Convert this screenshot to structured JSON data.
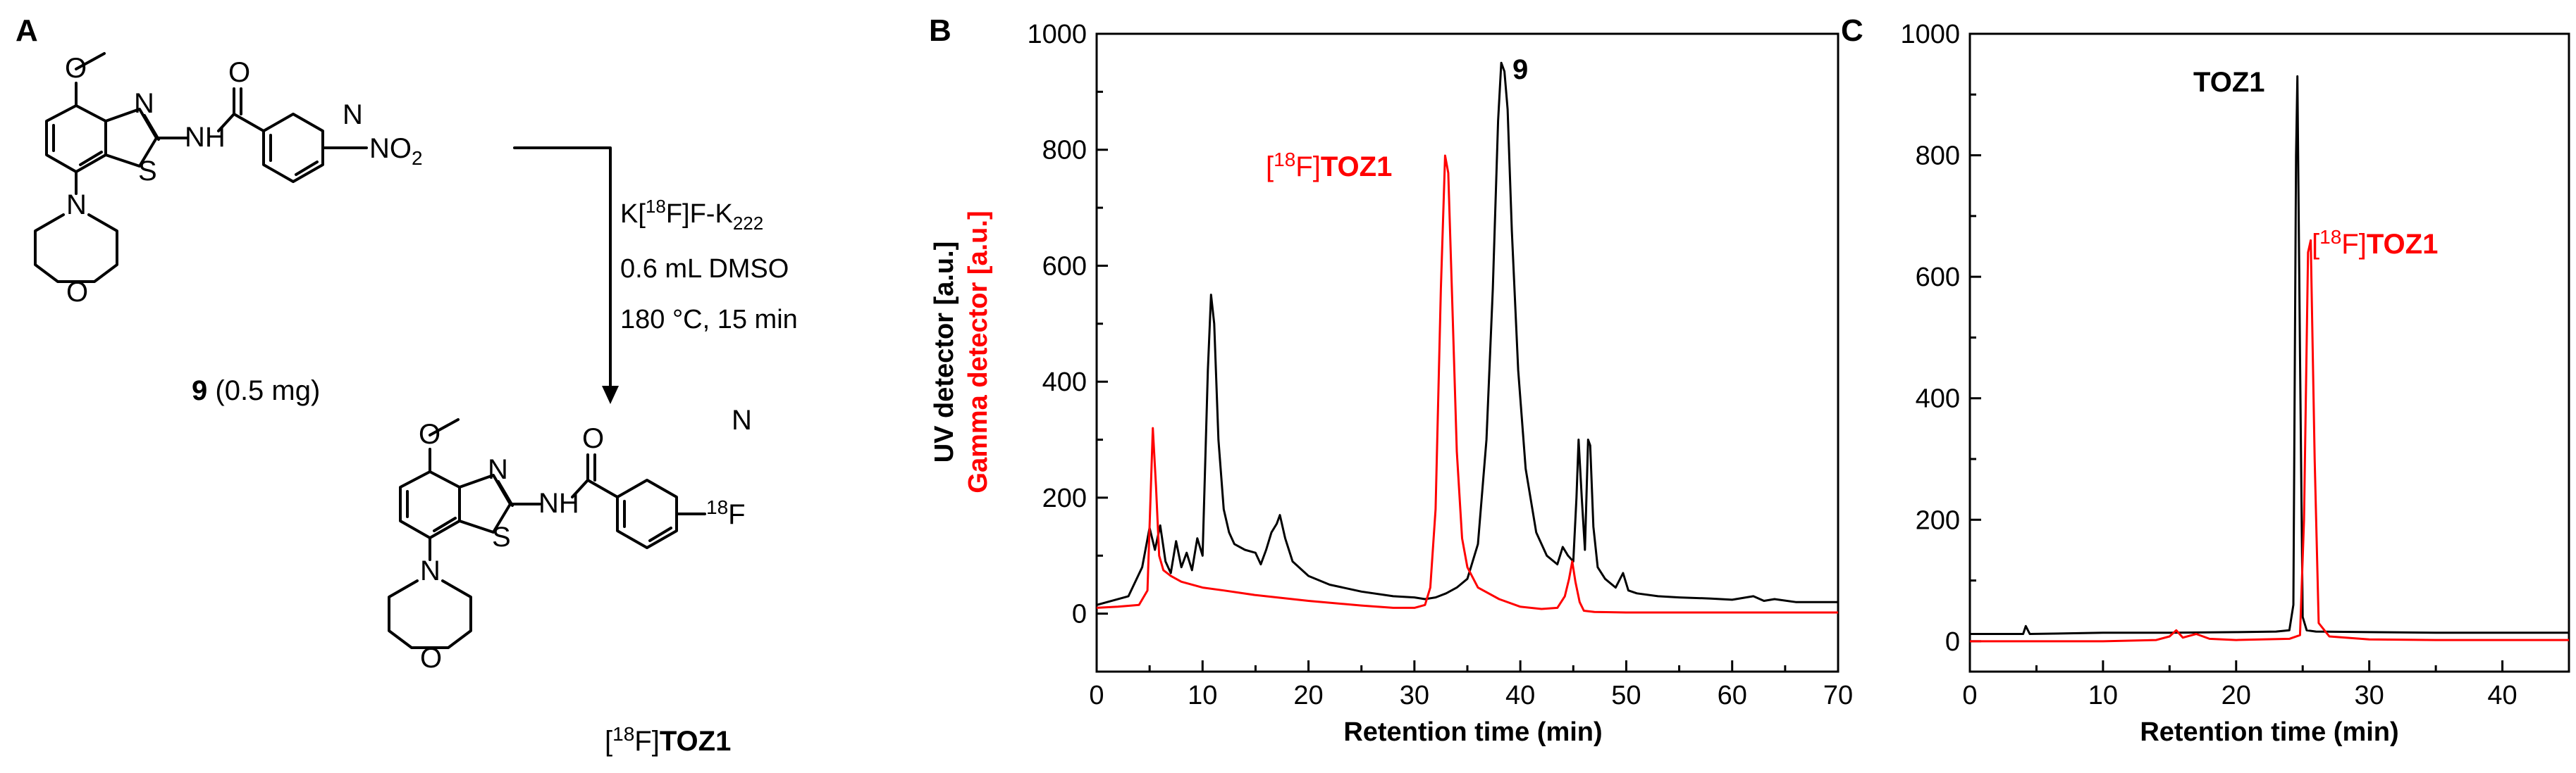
{
  "panel_a": {
    "panel_label": "A",
    "reactant": {
      "label_num": "9",
      "label_rest": "(0.5 mg)",
      "nitro": "NO",
      "nitro_sub": "2",
      "atoms": {
        "n": "N",
        "s": "S",
        "nh": "NH",
        "o_carbonyl": "O",
        "o_methoxy": "O",
        "n_py": "N",
        "n_morph": "N",
        "o_morph": "O"
      }
    },
    "conditions": {
      "line1_pre": "K[",
      "line1_sup": "18",
      "line1_mid": "F]F-K",
      "line1_sub": "222",
      "line2": "0.6 mL DMSO",
      "line3": "180 °C, 15 min"
    },
    "product": {
      "iso_open": "[",
      "iso_sup": "18",
      "iso_close": "F]",
      "name": "TOZ1",
      "f_sup": "18",
      "f_sym": "F",
      "atoms": {
        "n": "N",
        "s": "S",
        "nh": "NH",
        "o_carbonyl": "O",
        "o_methoxy": "O",
        "n_py": "N",
        "n_morph": "N",
        "o_morph": "O"
      }
    }
  },
  "chart_data": [
    {
      "panel_label": "B",
      "type": "line",
      "xlabel": "Retention time (min)",
      "ylabel_uv": "UV detector [a.u.]",
      "ylabel_gamma": "Gamma detector [a.u.]",
      "xlim": [
        0,
        70
      ],
      "ylim": [
        -100,
        1000
      ],
      "xticks": [
        "0",
        "10",
        "20",
        "30",
        "40",
        "50",
        "60",
        "70"
      ],
      "yticks": [
        "0",
        "200",
        "400",
        "600",
        "800",
        "1000"
      ],
      "series": [
        {
          "name": "UV",
          "color": "#000000",
          "x": [
            0,
            3,
            4.3,
            5,
            5.5,
            6,
            6.5,
            7,
            7.5,
            8,
            8.5,
            9,
            9.5,
            10,
            10.5,
            10.8,
            11.1,
            11.5,
            12,
            12.5,
            13,
            14,
            15,
            15.5,
            16,
            16.5,
            17,
            17.3,
            17.8,
            18.5,
            20,
            22,
            25,
            28,
            30,
            31,
            32,
            33,
            34,
            35,
            36,
            36.8,
            37.4,
            37.9,
            38.2,
            38.5,
            38.8,
            39.2,
            39.8,
            40.5,
            41.5,
            42.5,
            43.5,
            44,
            44.5,
            45,
            45.3,
            45.5,
            45.8,
            46.1,
            46.4,
            46.6,
            46.9,
            47.3,
            48,
            49,
            49.7,
            50.2,
            51,
            53,
            55,
            58,
            60,
            62,
            63,
            64,
            66,
            70
          ],
          "y": [
            15,
            30,
            80,
            148,
            110,
            152,
            90,
            70,
            125,
            80,
            105,
            75,
            130,
            100,
            420,
            550,
            500,
            300,
            180,
            140,
            120,
            110,
            105,
            85,
            110,
            140,
            155,
            170,
            130,
            90,
            65,
            50,
            38,
            30,
            28,
            25,
            28,
            35,
            45,
            60,
            120,
            300,
            560,
            850,
            950,
            935,
            870,
            660,
            420,
            250,
            140,
            100,
            85,
            115,
            100,
            90,
            200,
            300,
            200,
            110,
            300,
            290,
            150,
            80,
            60,
            45,
            70,
            40,
            35,
            30,
            28,
            26,
            24,
            30,
            22,
            25,
            20,
            20
          ]
        },
        {
          "name": "Gamma",
          "color": "#ff0000",
          "x": [
            0,
            2,
            4,
            4.8,
            5.3,
            5.6,
            5.9,
            6.3,
            7,
            8,
            10,
            12,
            15,
            20,
            25,
            28,
            30,
            31,
            31.5,
            32,
            32.5,
            32.9,
            33.2,
            33.6,
            34,
            34.5,
            35,
            36,
            38,
            40,
            42,
            43.5,
            44.2,
            44.6,
            44.9,
            45.2,
            45.6,
            46,
            47,
            50,
            55,
            60,
            65,
            70
          ],
          "y": [
            10,
            12,
            15,
            40,
            320,
            220,
            100,
            75,
            65,
            55,
            45,
            40,
            32,
            22,
            14,
            10,
            10,
            15,
            45,
            180,
            560,
            790,
            760,
            520,
            280,
            130,
            80,
            45,
            25,
            12,
            8,
            10,
            30,
            60,
            90,
            55,
            20,
            5,
            3,
            2,
            2,
            2,
            2,
            2
          ]
        }
      ],
      "annotations": {
        "uv_peak": "9",
        "gamma_iso_open": "[",
        "gamma_iso_sup": "18",
        "gamma_iso_close": "F]",
        "gamma_name": "TOZ1"
      }
    },
    {
      "panel_label": "C",
      "type": "line",
      "xlabel": "Retention time (min)",
      "xlim": [
        0,
        45
      ],
      "ylim": [
        -50,
        1000
      ],
      "xticks": [
        "0",
        "10",
        "20",
        "30",
        "40"
      ],
      "yticks": [
        "0",
        "200",
        "400",
        "600",
        "800",
        "1000"
      ],
      "series": [
        {
          "name": "UV",
          "color": "#000000",
          "x": [
            0,
            4,
            4.2,
            4.5,
            10,
            15,
            20,
            23,
            24,
            24.3,
            24.5,
            24.6,
            24.8,
            25,
            25.3,
            26,
            30,
            35,
            40,
            45
          ],
          "y": [
            12,
            12,
            25,
            12,
            14,
            14,
            15,
            16,
            18,
            60,
            800,
            930,
            470,
            40,
            18,
            16,
            15,
            14,
            14,
            14
          ]
        },
        {
          "name": "Gamma",
          "color": "#ff0000",
          "x": [
            0,
            10,
            14,
            15,
            15.5,
            16,
            17,
            18,
            19,
            20,
            24,
            24.8,
            25.1,
            25.4,
            25.6,
            25.9,
            26.2,
            27,
            30,
            35,
            40,
            45
          ],
          "y": [
            0,
            0,
            2,
            8,
            18,
            6,
            12,
            4,
            3,
            2,
            4,
            10,
            200,
            640,
            660,
            300,
            30,
            8,
            3,
            2,
            2,
            2
          ]
        }
      ],
      "annotations": {
        "uv_label": "TOZ1",
        "gamma_iso_open": "[",
        "gamma_iso_sup": "18",
        "gamma_iso_close": "F]",
        "gamma_name": "TOZ1"
      }
    }
  ]
}
